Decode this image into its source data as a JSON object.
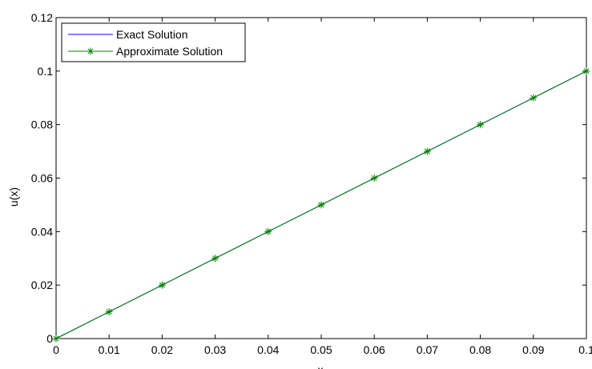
{
  "chart_data": {
    "type": "line",
    "title": "",
    "xlabel": "x",
    "ylabel": "u(x)",
    "xlim": [
      0,
      0.1
    ],
    "ylim": [
      0,
      0.12
    ],
    "grid": false,
    "legend_position": "top-left",
    "x_ticks": [
      "0",
      "0.01",
      "0.02",
      "0.03",
      "0.04",
      "0.05",
      "0.06",
      "0.07",
      "0.08",
      "0.09",
      "0.1"
    ],
    "y_ticks": [
      "0",
      "0.02",
      "0.04",
      "0.06",
      "0.08",
      "0.1",
      "0.12"
    ],
    "series": [
      {
        "name": "Exact Solution",
        "color": "#0000ff",
        "marker": "none",
        "x": [
          0,
          0.1
        ],
        "y": [
          0,
          0.1
        ]
      },
      {
        "name": "Approximate Solution",
        "color": "#008000",
        "marker": "asterisk",
        "x": [
          0,
          0.01,
          0.02,
          0.03,
          0.04,
          0.05,
          0.06,
          0.07,
          0.08,
          0.09,
          0.1
        ],
        "y": [
          0,
          0.01,
          0.02,
          0.03,
          0.04,
          0.05,
          0.06,
          0.07,
          0.08,
          0.09,
          0.1
        ]
      }
    ]
  }
}
